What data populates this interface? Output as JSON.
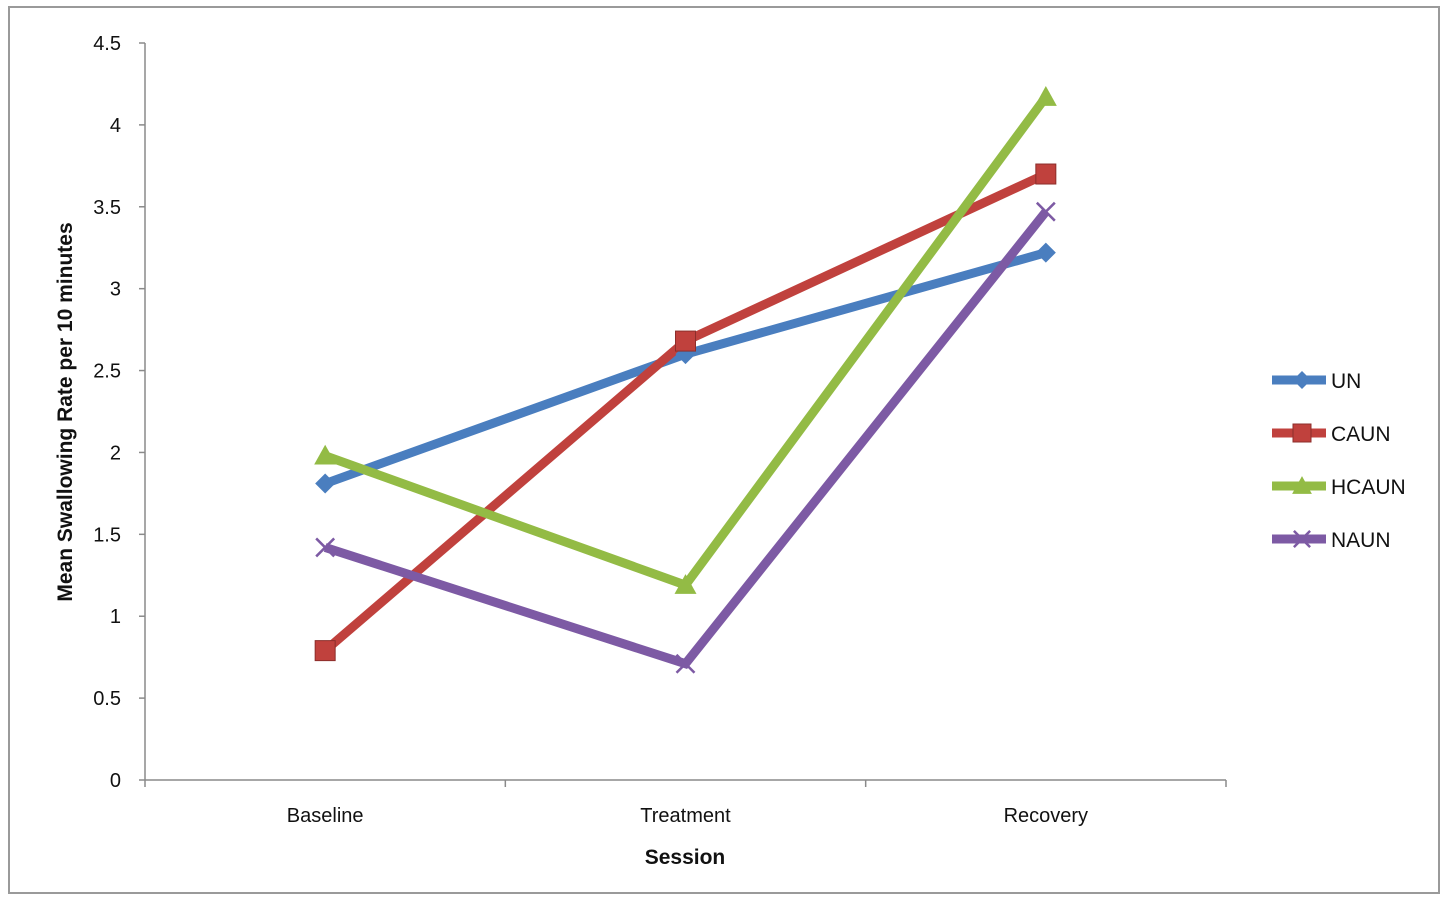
{
  "chart_data": {
    "type": "line",
    "xlabel": "Session",
    "ylabel": "Mean Swallowing Rate per 10 minutes",
    "categories": [
      "Baseline",
      "Treatment",
      "Recovery"
    ],
    "ylim": [
      0,
      4.5
    ],
    "yticks": [
      "0",
      "0.5",
      "1",
      "1.5",
      "2",
      "2.5",
      "3",
      "3.5",
      "4",
      "4.5"
    ],
    "grid": false,
    "legend_position": "right",
    "series": [
      {
        "name": "UN",
        "color": "#4a7ebf",
        "marker": "diamond",
        "values": [
          1.81,
          2.6,
          3.22
        ]
      },
      {
        "name": "CAUN",
        "color": "#c0413d",
        "marker": "square",
        "values": [
          0.79,
          2.68,
          3.7
        ]
      },
      {
        "name": "HCAUN",
        "color": "#93bb45",
        "marker": "triangle",
        "values": [
          1.98,
          1.19,
          4.17
        ]
      },
      {
        "name": "NAUN",
        "color": "#7d5aa4",
        "marker": "x",
        "values": [
          1.42,
          0.71,
          3.47
        ]
      }
    ]
  }
}
